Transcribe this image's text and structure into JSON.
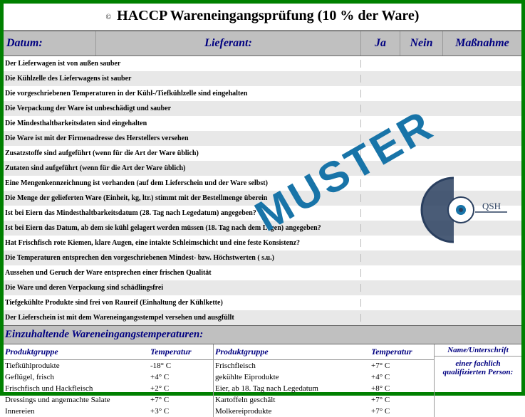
{
  "title": {
    "copyright": "©",
    "text": "HACCP Wareneingangsprüfung (10 % der Ware)"
  },
  "header": {
    "datum": "Datum:",
    "lieferant": "Lieferant:",
    "ja": "Ja",
    "nein": "Nein",
    "massnahme": "Maßnahme"
  },
  "checklist": [
    "Der Lieferwagen ist von außen sauber",
    "Die Kühlzelle des Lieferwagens ist sauber",
    "Die vorgeschriebenen Temperaturen in der Kühl-/Tiefkühlzelle sind eingehalten",
    "Die Verpackung der Ware ist unbeschädigt und sauber",
    "Die Mindesthaltbarkeitsdaten sind eingehalten",
    "Die Ware ist mit der Firmenadresse des Herstellers versehen",
    "Zusatzstoffe sind aufgeführt (wenn für die Art der Ware üblich)",
    "Zutaten sind aufgeführt (wenn für die Art der Ware üblich)",
    "Eine Mengenkennzeichnung ist vorhanden (auf dem Lieferschein und der Ware selbst)",
    "Die Menge der gelieferten Ware (Einheit, kg, ltr.) stimmt mit der Bestellmenge überein",
    "Ist bei Eiern das Mindesthaltbarkeitsdatum (28. Tag nach Legedatum) angegeben?",
    "Ist bei Eiern das Datum, ab dem sie kühl gelagert werden müssen (18. Tag nach dem Legen) angegeben?",
    "Hat Frischfisch rote Kiemen, klare Augen, eine intakte Schleimschicht und eine feste Konsistenz?",
    "Die Temperaturen entsprechen den vorgeschriebenen Mindest- bzw. Höchstwerten ( s.u.)",
    "Aussehen und Geruch der Ware entsprechen einer frischen Qualität",
    "Die Ware und deren Verpackung sind schädlingsfrei",
    "Tiefgekühlte Produkte sind frei von Raureif (Einhaltung der Kühlkette)",
    "Der Lieferschein ist mit dem Wareneingangsstempel versehen und ausgfüllt"
  ],
  "tempSection": {
    "heading": "Einzuhaltende Wareneingangstemperaturen:",
    "colProduktgruppe": "Produktgruppe",
    "colTemperatur": "Temperatur",
    "left": [
      {
        "pg": "Tiefkühlprodukte",
        "t": "-18° C"
      },
      {
        "pg": "Geflügel, frisch",
        "t": "+4° C"
      },
      {
        "pg": "Frischfisch und Hackfleisch",
        "t": "+2° C"
      },
      {
        "pg": "Dressings und angemachte Salate",
        "t": "+7° C"
      },
      {
        "pg": "Innereien",
        "t": "+3° C"
      }
    ],
    "right": [
      {
        "pg": "Frischfleisch",
        "t": "+7° C"
      },
      {
        "pg": "gekühlte Eiprodukte",
        "t": "+4° C"
      },
      {
        "pg": "Eier, ab 18. Tag nach Legedatum",
        "t": "+8° C"
      },
      {
        "pg": "Kartoffeln geschält",
        "t": "+7° C"
      },
      {
        "pg": "Molkereiprodukte",
        "t": "+7° C"
      }
    ],
    "signLabel1": "Name/Unterschrift",
    "signLabel2": "einer fachlich qualifizierten Person:"
  },
  "watermark": "MUSTER",
  "logo": {
    "label": "QSH",
    "color": "#2a3f5f",
    "accent": "#1874a8"
  }
}
